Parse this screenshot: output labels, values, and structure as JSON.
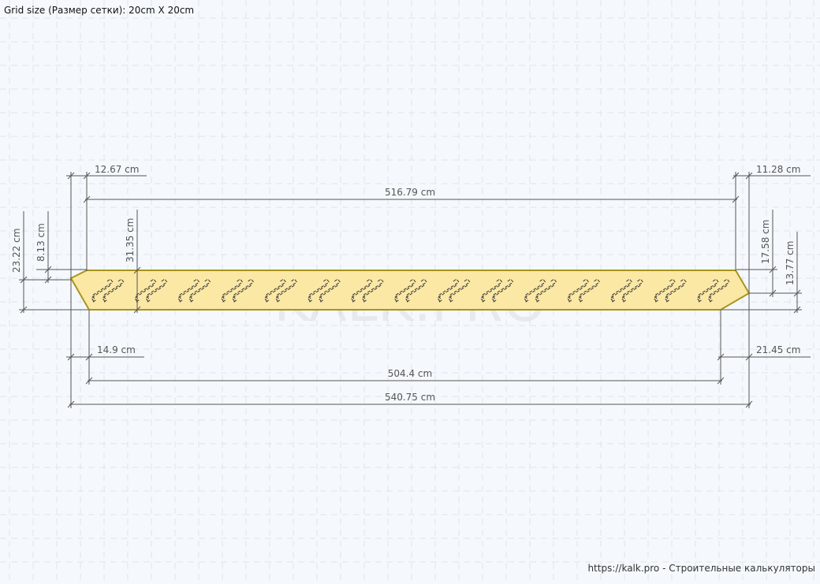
{
  "header": {
    "grid_size": "Grid size (Размер сетки): 20cm X 20cm"
  },
  "watermark": "KALK.PRO",
  "footer": {
    "credit": "https://kalk.pro - Строительные калькуляторы"
  },
  "colors": {
    "board_fill": "#fbe8a5",
    "board_stroke": "#a89420",
    "dim_line": "#555555",
    "grid": "#d7e0e6",
    "background": "#f5f9fd"
  },
  "dimensions": {
    "top_left_offset": "12.67 cm",
    "top_length": "516.79 cm",
    "top_right_offset": "11.28 cm",
    "left_total_height": "23.22 cm",
    "left_bevel_height": "8.13 cm",
    "inner_height": "31.35 cm",
    "right_bevel_top": "17.58 cm",
    "right_bevel_bottom": "13.77 cm",
    "bottom_left_offset": "14.9 cm",
    "bottom_length": "504.4 cm",
    "bottom_right_offset": "21.45 cm",
    "total_length": "540.75 cm"
  },
  "staple_count": 15
}
